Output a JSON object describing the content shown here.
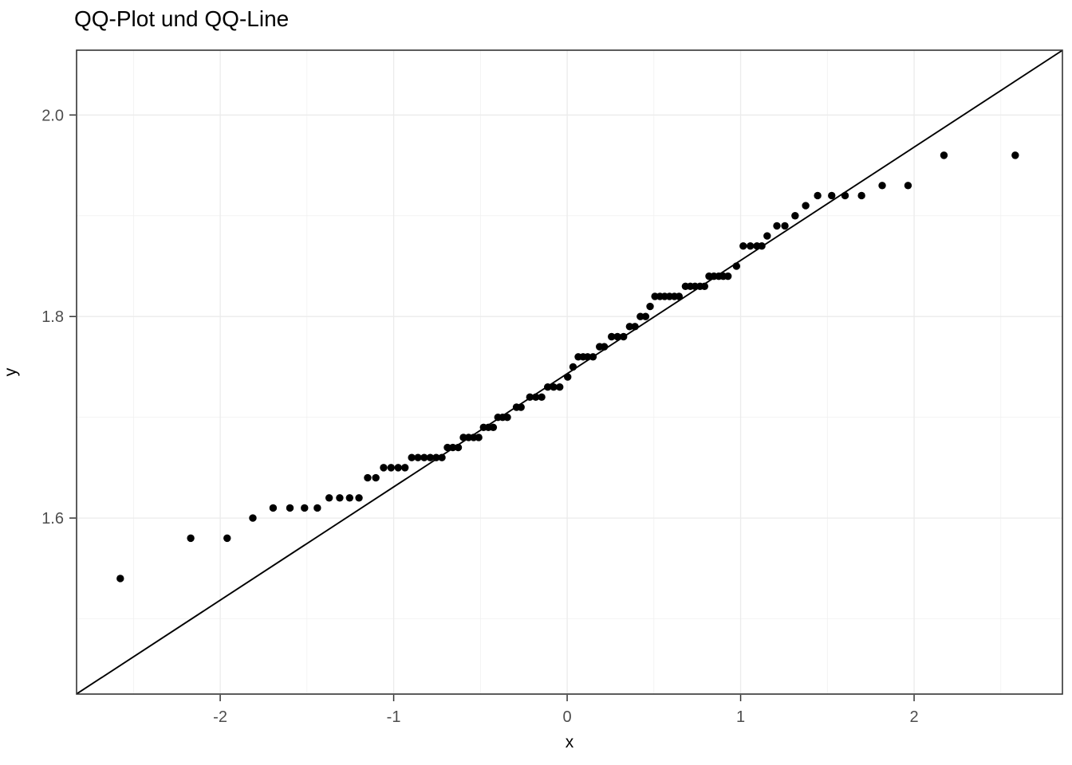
{
  "chart_data": {
    "type": "scatter",
    "title": "QQ-Plot und QQ-Line",
    "xlabel": "x",
    "ylabel": "y",
    "xlim": [
      -2.828,
      2.855
    ],
    "ylim": [
      1.4253,
      2.0643
    ],
    "x_major_ticks": [
      -2,
      -1,
      0,
      1,
      2
    ],
    "x_major_labels": [
      "-2",
      "-1",
      "0",
      "1",
      "2"
    ],
    "x_minor_ticks": [
      -2.5,
      -1.5,
      -0.5,
      0.5,
      1.5,
      2.5
    ],
    "y_major_ticks": [
      1.6,
      1.8,
      2.0
    ],
    "y_major_labels": [
      "1.6",
      "1.8",
      "2.0"
    ],
    "y_minor_ticks": [
      1.5,
      1.7,
      1.9
    ],
    "grid": true,
    "legend": "none",
    "qq_line": {
      "intercept": 1.7433,
      "slope": 0.1124
    },
    "point_rows": [
      {
        "y": 1.54,
        "x": [
          -2.576
        ]
      },
      {
        "y": 1.58,
        "x": [
          -2.17,
          -1.96
        ]
      },
      {
        "y": 1.6,
        "x": [
          -1.812
        ]
      },
      {
        "y": 1.61,
        "x": [
          -1.695,
          -1.598,
          -1.514,
          -1.44
        ]
      },
      {
        "y": 1.62,
        "x": [
          -1.372,
          -1.311,
          -1.254,
          -1.2
        ]
      },
      {
        "y": 1.64,
        "x": [
          -1.15,
          -1.103
        ]
      },
      {
        "y": 1.65,
        "x": [
          -1.058,
          -1.015,
          -0.974,
          -0.935
        ]
      },
      {
        "y": 1.66,
        "x": [
          -0.896,
          -0.86,
          -0.824,
          -0.789,
          -0.755,
          -0.722
        ]
      },
      {
        "y": 1.67,
        "x": [
          -0.69,
          -0.659,
          -0.628
        ]
      },
      {
        "y": 1.68,
        "x": [
          -0.598,
          -0.568,
          -0.539,
          -0.51
        ]
      },
      {
        "y": 1.69,
        "x": [
          -0.482,
          -0.454,
          -0.426
        ]
      },
      {
        "y": 1.7,
        "x": [
          -0.399,
          -0.372,
          -0.345
        ]
      },
      {
        "y": 1.71,
        "x": [
          -0.292,
          -0.266
        ]
      },
      {
        "y": 1.72,
        "x": [
          -0.215,
          -0.181,
          -0.147
        ]
      },
      {
        "y": 1.73,
        "x": [
          -0.112,
          -0.078,
          -0.043
        ]
      },
      {
        "y": 1.74,
        "x": [
          0.003
        ]
      },
      {
        "y": 1.75,
        "x": [
          0.034
        ]
      },
      {
        "y": 1.76,
        "x": [
          0.064,
          0.092,
          0.118,
          0.149
        ]
      },
      {
        "y": 1.77,
        "x": [
          0.187,
          0.214
        ]
      },
      {
        "y": 1.78,
        "x": [
          0.256,
          0.29,
          0.325
        ]
      },
      {
        "y": 1.79,
        "x": [
          0.36,
          0.391
        ]
      },
      {
        "y": 1.8,
        "x": [
          0.422,
          0.452
        ]
      },
      {
        "y": 1.81,
        "x": [
          0.478
        ]
      },
      {
        "y": 1.82,
        "x": [
          0.506,
          0.535,
          0.562,
          0.59,
          0.618,
          0.645
        ]
      },
      {
        "y": 1.83,
        "x": [
          0.682,
          0.71,
          0.737,
          0.766,
          0.792
        ]
      },
      {
        "y": 1.84,
        "x": [
          0.818,
          0.846,
          0.874,
          0.9,
          0.927
        ]
      },
      {
        "y": 1.85,
        "x": [
          0.976
        ]
      },
      {
        "y": 1.87,
        "x": [
          1.015,
          1.056,
          1.094,
          1.122
        ]
      },
      {
        "y": 1.88,
        "x": [
          1.153
        ]
      },
      {
        "y": 1.89,
        "x": [
          1.209,
          1.255
        ]
      },
      {
        "y": 1.9,
        "x": [
          1.314
        ]
      },
      {
        "y": 1.91,
        "x": [
          1.375
        ]
      },
      {
        "y": 1.92,
        "x": [
          1.444,
          1.525,
          1.602,
          1.697
        ]
      },
      {
        "y": 1.93,
        "x": [
          1.816,
          1.965
        ]
      },
      {
        "y": 1.96,
        "x": [
          2.172,
          2.583
        ]
      },
      {
        "y": null,
        "x": []
      }
    ],
    "colors": {
      "background": "#ffffff",
      "panel_background": "#ffffff",
      "grid_major": "#ebebeb",
      "grid_minor": "#efefef",
      "panel_border": "#333333",
      "tick_mark": "#333333",
      "tick_label": "#4d4d4d",
      "point": "#000000",
      "line": "#000000",
      "title": "#000000"
    }
  }
}
